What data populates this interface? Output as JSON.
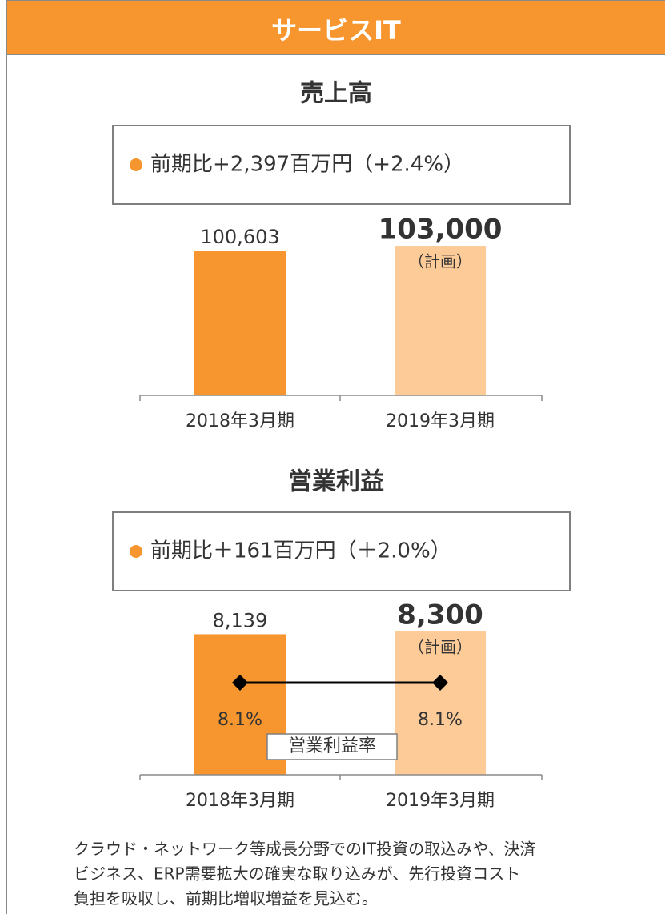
{
  "header": {
    "title": "サービスIT"
  },
  "chart_data": [
    {
      "type": "bar",
      "title": "売上高",
      "annotation": "前期比+2,397百万円（+2.4%）",
      "categories": [
        "2018年3月期",
        "2019年3月期"
      ],
      "values": [
        100603,
        103000
      ],
      "value_labels": [
        "100,603",
        "103,000"
      ],
      "value_notes": [
        null,
        "（計画）"
      ],
      "colors": [
        "#f7962f",
        "#fdcb98"
      ],
      "ylim": [
        28300,
        116200
      ]
    },
    {
      "type": "bar",
      "title": "営業利益",
      "annotation": "前期比＋161百万円（＋2.0%）",
      "categories": [
        "2018年3月期",
        "2019年3月期"
      ],
      "values": [
        8139,
        8300
      ],
      "value_labels": [
        "8,139",
        "8,300"
      ],
      "value_notes": [
        null,
        "（計画）"
      ],
      "colors": [
        "#f7962f",
        "#fdcb98"
      ],
      "ylim": [
        0,
        10200
      ],
      "line_series": {
        "name": "営業利益率",
        "color": "#000000",
        "axis": "y2",
        "values": [
          8.1,
          8.1
        ],
        "value_labels": [
          "8.1%",
          "8.1%"
        ]
      },
      "y2lim": [
        0,
        15.5
      ]
    }
  ],
  "note": [
    "クラウド・ネットワーク等成長分野でのIT投資の取込みや、決済",
    "ビジネス、ERP需要拡大の確実な取り込みが、先行投資コスト",
    "負担を吸収し、前期比増収増益を見込む。"
  ]
}
